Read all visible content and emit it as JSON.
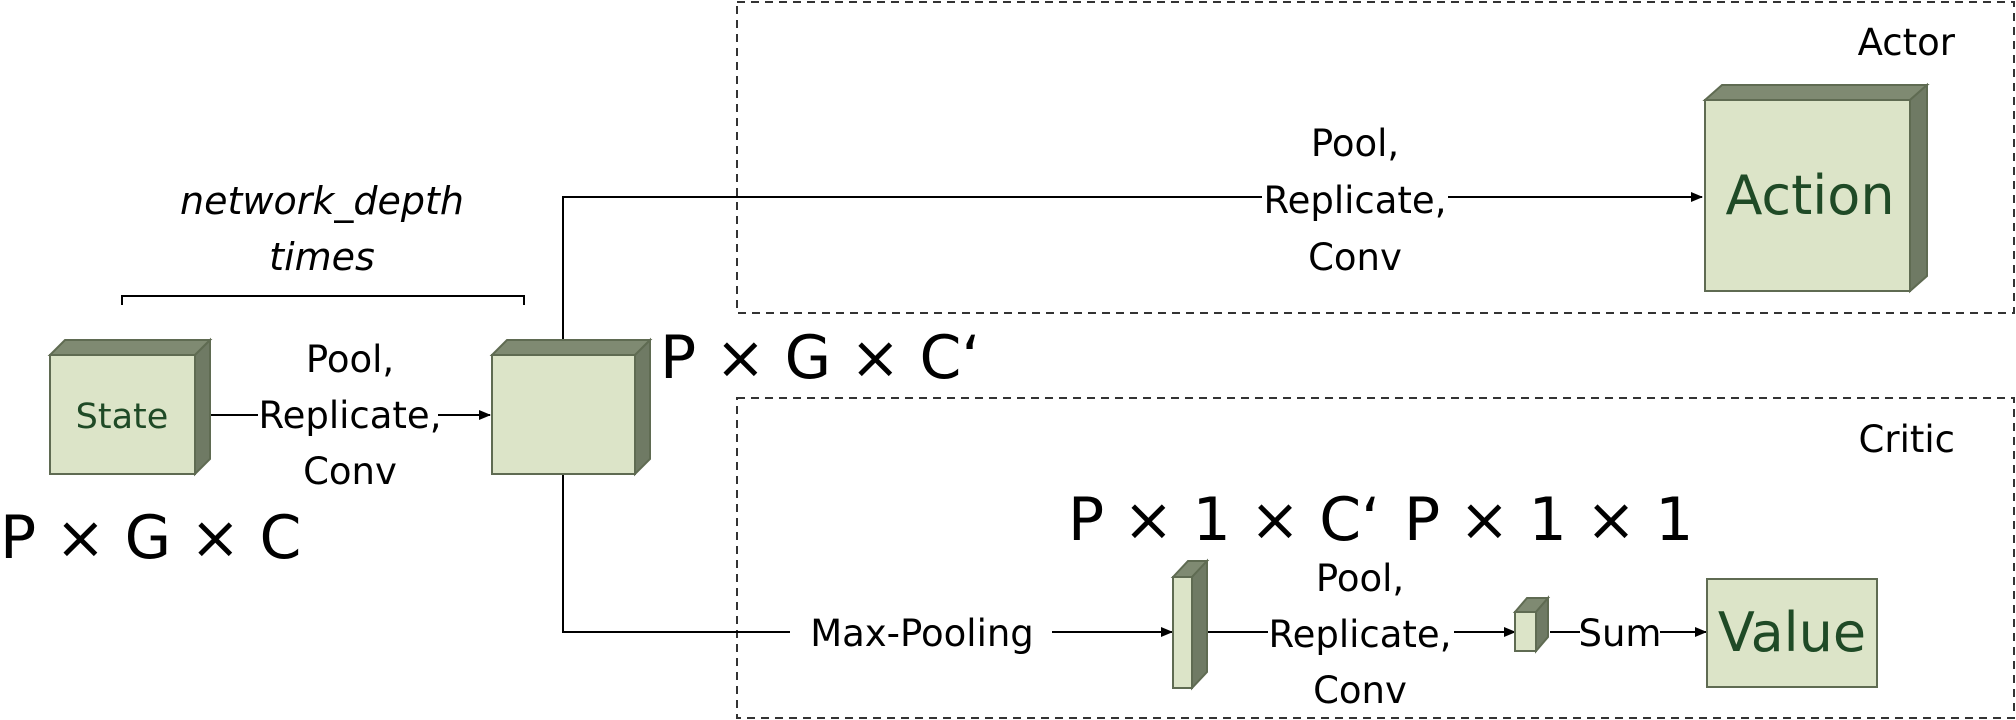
{
  "regions": {
    "actor_title": "Actor",
    "critic_title": "Critic"
  },
  "blocks": {
    "state_label": "State",
    "action_label": "Action",
    "value_label": "Value"
  },
  "annotations": {
    "loop_line1": "network_depth",
    "loop_line2": "times",
    "state_shape": "P × G × C",
    "hidden_shape": "P × G × C‘",
    "pooled_shape": "P × 1 × C‘",
    "scalar_shape": "P × 1 × 1"
  },
  "edges": {
    "state_to_hidden": [
      "Pool,",
      "Replicate,",
      "Conv"
    ],
    "hidden_to_action": [
      "Pool,",
      "Replicate,",
      "Conv"
    ],
    "hidden_to_pool": "Max-Pooling",
    "pool_to_scalar": [
      "Pool,",
      "Replicate,",
      "Conv"
    ],
    "scalar_to_value": "Sum"
  },
  "colors": {
    "box_face": "#dce4c8",
    "box_shade": "#6f7a64",
    "box_text": "#1f4a26"
  }
}
